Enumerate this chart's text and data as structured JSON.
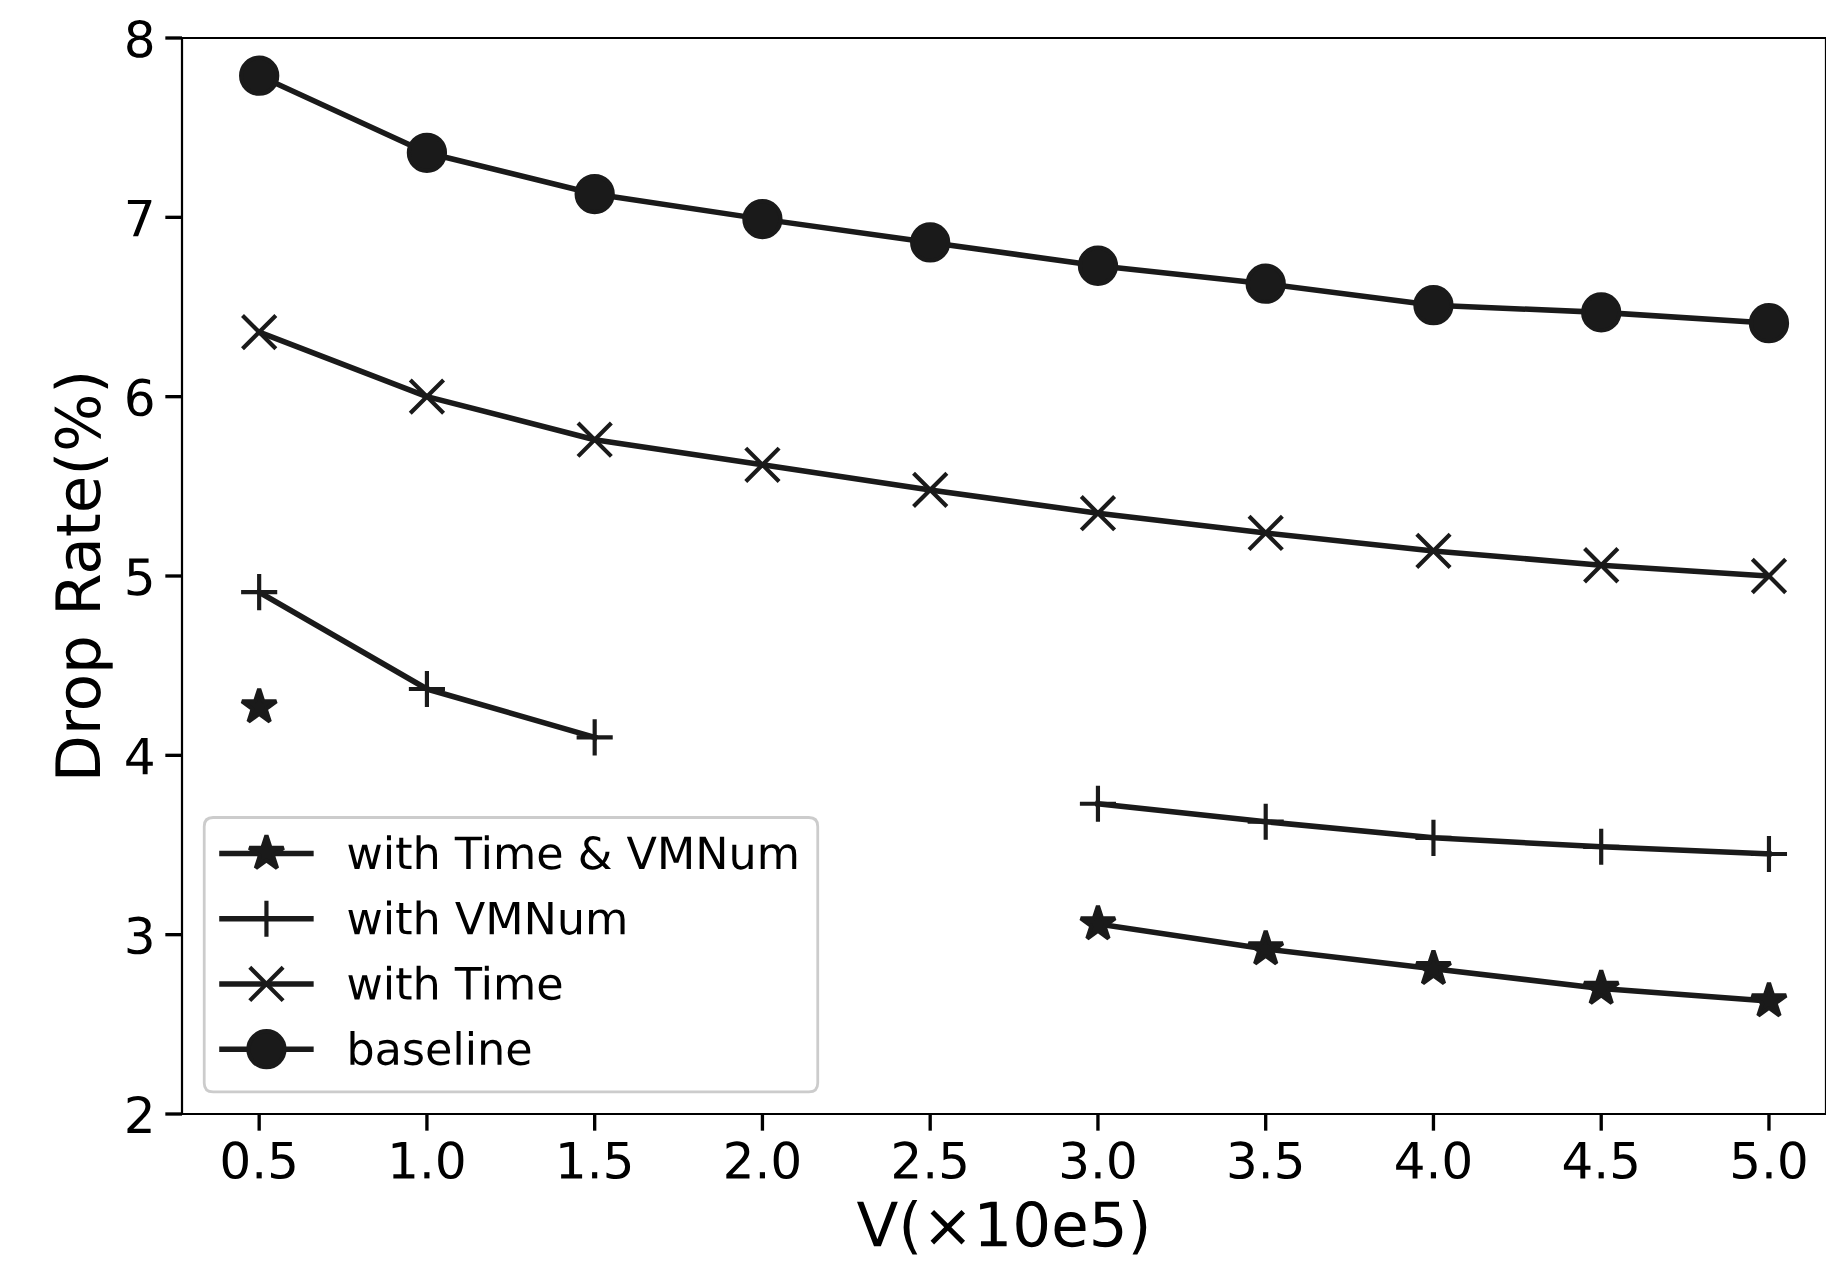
{
  "chart_data": {
    "type": "line",
    "xlabel": "V(×10e5)",
    "ylabel": "Drop Rate(%)",
    "x": [
      0.5,
      1.0,
      1.5,
      2.0,
      2.5,
      3.0,
      3.5,
      4.0,
      4.5,
      5.0
    ],
    "series": [
      {
        "name": "with Time & VMNum",
        "color": "#1a1a1a",
        "marker": "star",
        "values": [
          4.27,
          null,
          null,
          null,
          null,
          3.06,
          2.92,
          2.81,
          2.7,
          2.63
        ]
      },
      {
        "name": "with VMNum",
        "color": "#1a1a1a",
        "marker": "plus",
        "values": [
          4.91,
          4.37,
          4.1,
          null,
          null,
          3.73,
          3.63,
          3.54,
          3.49,
          3.45
        ]
      },
      {
        "name": "with Time",
        "color": "#1a1a1a",
        "marker": "cross",
        "values": [
          6.36,
          6.0,
          5.76,
          5.62,
          5.48,
          5.35,
          5.24,
          5.14,
          5.06,
          5.0
        ]
      },
      {
        "name": "baseline",
        "color": "#1a1a1a",
        "marker": "circle",
        "values": [
          7.79,
          7.36,
          7.13,
          6.99,
          6.86,
          6.73,
          6.63,
          6.51,
          6.47,
          6.41
        ]
      }
    ],
    "xlim": [
      0.27,
      5.17
    ],
    "ylim": [
      2,
      8
    ],
    "xticks": [
      {
        "value": 0.5,
        "label": "0.5"
      },
      {
        "value": 1.0,
        "label": "1.0"
      },
      {
        "value": 1.5,
        "label": "1.5"
      },
      {
        "value": 2.0,
        "label": "2.0"
      },
      {
        "value": 2.5,
        "label": "2.5"
      },
      {
        "value": 3.0,
        "label": "3.0"
      },
      {
        "value": 3.5,
        "label": "3.5"
      },
      {
        "value": 4.0,
        "label": "4.0"
      },
      {
        "value": 4.5,
        "label": "4.5"
      },
      {
        "value": 5.0,
        "label": "5.0"
      }
    ],
    "yticks": [
      2,
      3,
      4,
      5,
      6,
      7,
      8
    ],
    "grid": false,
    "legend": "bottom left",
    "line_style": "solid"
  }
}
